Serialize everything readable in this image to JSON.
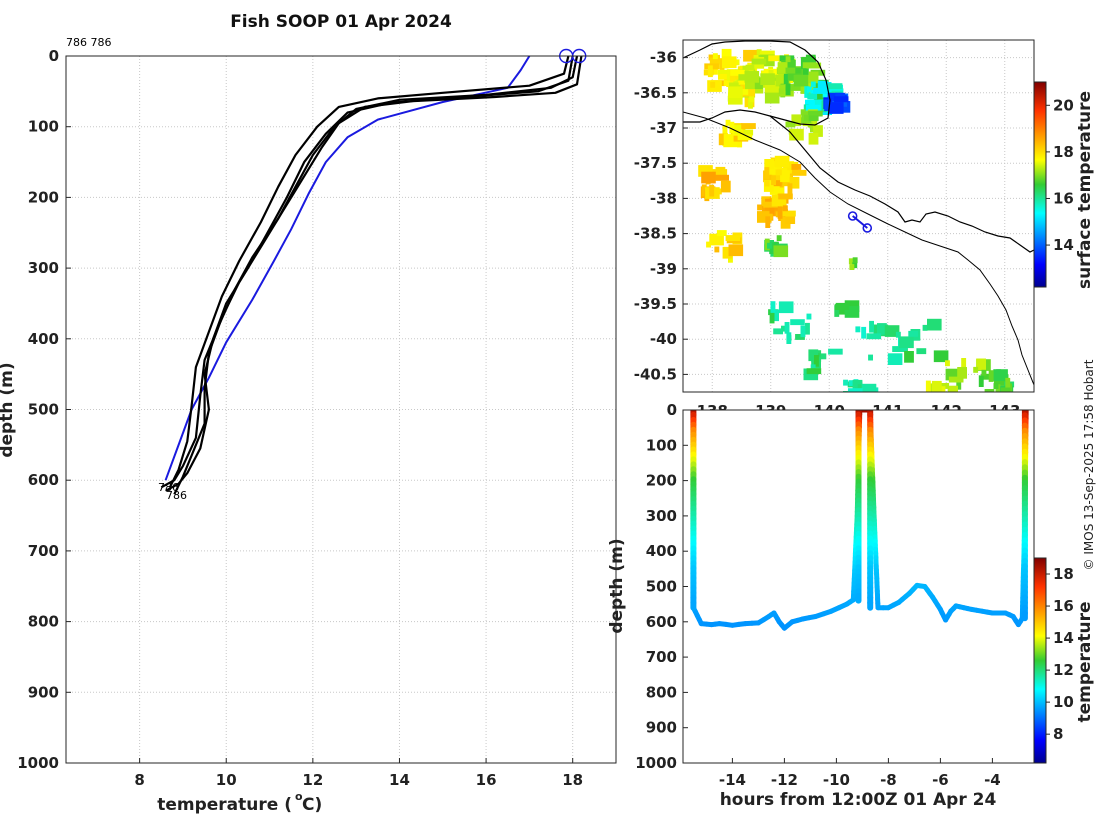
{
  "copyright": "© IMOS 13-Sep-2025 17:58 Hobart",
  "colors": {
    "profile_black": "#000000",
    "profile_blue": "#1a1adf",
    "axis": "#262626"
  },
  "chart_data": [
    {
      "id": "profile",
      "type": "line",
      "title": "Fish SOOP 01 Apr 2024",
      "xlabel": "temperature (",
      "xlabel_sup": "o",
      "xlabel_end": " C)",
      "ylabel": "depth (m)",
      "xlim": [
        6.3,
        19
      ],
      "ylim": [
        1000,
        0
      ],
      "xticks": [
        8,
        10,
        12,
        14,
        16,
        18
      ],
      "yticks": [
        0,
        100,
        200,
        300,
        400,
        500,
        600,
        700,
        800,
        900,
        1000
      ],
      "grid": true,
      "annotations": [
        "786 786",
        "786",
        "786"
      ],
      "series": [
        {
          "name": "blue profile",
          "color": "#1a1adf",
          "points": [
            [
              17.0,
              0
            ],
            [
              16.8,
              20
            ],
            [
              16.5,
              45
            ],
            [
              15.0,
              65
            ],
            [
              13.5,
              90
            ],
            [
              12.8,
              115
            ],
            [
              12.3,
              150
            ],
            [
              11.9,
              195
            ],
            [
              11.5,
              245
            ],
            [
              11.1,
              290
            ],
            [
              10.6,
              345
            ],
            [
              10.0,
              405
            ],
            [
              9.6,
              455
            ],
            [
              9.2,
              500
            ],
            [
              8.9,
              550
            ],
            [
              8.6,
              600
            ]
          ]
        },
        {
          "name": "black profile 1",
          "color": "#000000",
          "points": [
            [
              18.1,
              0
            ],
            [
              18.0,
              30
            ],
            [
              17.5,
              45
            ],
            [
              16.0,
              55
            ],
            [
              14.0,
              62
            ],
            [
              13.0,
              75
            ],
            [
              12.5,
              100
            ],
            [
              12.0,
              140
            ],
            [
              11.6,
              185
            ],
            [
              11.2,
              230
            ],
            [
              10.6,
              285
            ],
            [
              10.2,
              330
            ],
            [
              9.8,
              385
            ],
            [
              9.5,
              430
            ],
            [
              9.4,
              480
            ],
            [
              9.3,
              540
            ],
            [
              9.0,
              580
            ],
            [
              8.8,
              600
            ],
            [
              8.5,
              610
            ]
          ]
        },
        {
          "name": "black profile 2",
          "color": "#000000",
          "points": [
            [
              18.0,
              0
            ],
            [
              17.9,
              35
            ],
            [
              17.2,
              50
            ],
            [
              15.5,
              58
            ],
            [
              13.8,
              66
            ],
            [
              12.8,
              80
            ],
            [
              12.3,
              110
            ],
            [
              11.8,
              150
            ],
            [
              11.4,
              200
            ],
            [
              11.0,
              245
            ],
            [
              10.5,
              300
            ],
            [
              10.0,
              350
            ],
            [
              9.7,
              400
            ],
            [
              9.5,
              450
            ],
            [
              9.6,
              500
            ],
            [
              9.4,
              555
            ],
            [
              9.1,
              590
            ],
            [
              8.9,
              605
            ],
            [
              8.6,
              615
            ]
          ]
        },
        {
          "name": "black profile 3",
          "color": "#000000",
          "points": [
            [
              17.9,
              0
            ],
            [
              17.8,
              25
            ],
            [
              17.0,
              42
            ],
            [
              15.0,
              52
            ],
            [
              13.5,
              60
            ],
            [
              12.6,
              72
            ],
            [
              12.1,
              100
            ],
            [
              11.6,
              140
            ],
            [
              11.2,
              185
            ],
            [
              10.8,
              235
            ],
            [
              10.3,
              290
            ],
            [
              9.9,
              340
            ],
            [
              9.6,
              390
            ],
            [
              9.3,
              440
            ],
            [
              9.2,
              495
            ],
            [
              9.1,
              545
            ],
            [
              8.9,
              585
            ],
            [
              8.7,
              610
            ]
          ]
        },
        {
          "name": "black profile 4",
          "color": "#000000",
          "points": [
            [
              18.2,
              0
            ],
            [
              18.1,
              40
            ],
            [
              17.6,
              52
            ],
            [
              16.2,
              58
            ],
            [
              14.3,
              64
            ],
            [
              13.2,
              72
            ],
            [
              12.6,
              95
            ],
            [
              12.2,
              130
            ],
            [
              11.8,
              170
            ],
            [
              11.3,
              220
            ],
            [
              10.8,
              270
            ],
            [
              10.3,
              320
            ],
            [
              9.9,
              370
            ],
            [
              9.6,
              420
            ],
            [
              9.5,
              470
            ],
            [
              9.5,
              520
            ],
            [
              9.2,
              565
            ],
            [
              9.0,
              595
            ],
            [
              8.8,
              620
            ]
          ]
        }
      ],
      "markers": [
        [
          17.85,
          0
        ],
        [
          18.15,
          0
        ]
      ]
    },
    {
      "id": "map",
      "type": "heatmap",
      "colorbar_label": "surface temperature",
      "colorbar_ticks": [
        14,
        16,
        18,
        20
      ],
      "colorbar_range": [
        12.2,
        21
      ],
      "yticks": [
        -36,
        -36.5,
        -37,
        -37.5,
        -38,
        -38.5,
        -39,
        -39.5,
        -40,
        -40.5
      ],
      "xticks": [
        138,
        139,
        140,
        141,
        142,
        143
      ],
      "lon_range": [
        137.5,
        143.5
      ],
      "lat_range": [
        -35.75,
        -40.75
      ],
      "track": [
        [
          140.4,
          -38.25
        ],
        [
          140.65,
          -38.42
        ]
      ]
    },
    {
      "id": "section",
      "type": "scatter",
      "xlabel": "hours from 12:00Z 01 Apr 24",
      "ylabel": "depth (m)",
      "colorbar_label": "temperature",
      "colorbar_ticks": [
        8,
        10,
        12,
        14,
        16,
        18
      ],
      "colorbar_range": [
        6.2,
        19
      ],
      "xlim": [
        -15.9,
        -2.4
      ],
      "ylim": [
        1000,
        0
      ],
      "xticks": [
        -14,
        -12,
        -10,
        -8,
        -6,
        -4
      ],
      "yticks": [
        0,
        100,
        200,
        300,
        400,
        500,
        600,
        700,
        800,
        900,
        1000
      ],
      "bottom_trace": [
        [
          -15.5,
          560
        ],
        [
          -15.2,
          605
        ],
        [
          -14.8,
          608
        ],
        [
          -14.5,
          605
        ],
        [
          -14.0,
          610
        ],
        [
          -13.5,
          605
        ],
        [
          -13.0,
          603
        ],
        [
          -12.6,
          585
        ],
        [
          -12.4,
          575
        ],
        [
          -12.2,
          600
        ],
        [
          -12.0,
          618
        ],
        [
          -11.7,
          600
        ],
        [
          -11.3,
          592
        ],
        [
          -10.8,
          585
        ],
        [
          -10.2,
          570
        ],
        [
          -9.6,
          550
        ],
        [
          -9.35,
          538
        ],
        [
          -9.2,
          300
        ],
        [
          -9.1,
          0
        ],
        [
          -8.7,
          0
        ],
        [
          -8.55,
          300
        ],
        [
          -8.4,
          560
        ],
        [
          -8.0,
          560
        ],
        [
          -7.6,
          545
        ],
        [
          -7.2,
          520
        ],
        [
          -6.9,
          497
        ],
        [
          -6.6,
          500
        ],
        [
          -6.3,
          530
        ],
        [
          -6.0,
          565
        ],
        [
          -5.8,
          595
        ],
        [
          -5.6,
          570
        ],
        [
          -5.4,
          555
        ],
        [
          -5.1,
          560
        ],
        [
          -4.8,
          565
        ],
        [
          -4.4,
          570
        ],
        [
          -4.0,
          575
        ],
        [
          -3.5,
          575
        ],
        [
          -3.2,
          585
        ],
        [
          -3.0,
          608
        ],
        [
          -2.85,
          590
        ],
        [
          -2.75,
          300
        ],
        [
          -2.7,
          0
        ]
      ],
      "casts": [
        [
          -15.5,
          560
        ],
        [
          -9.15,
          540
        ],
        [
          -8.7,
          560
        ],
        [
          -2.75,
          590
        ]
      ]
    }
  ]
}
